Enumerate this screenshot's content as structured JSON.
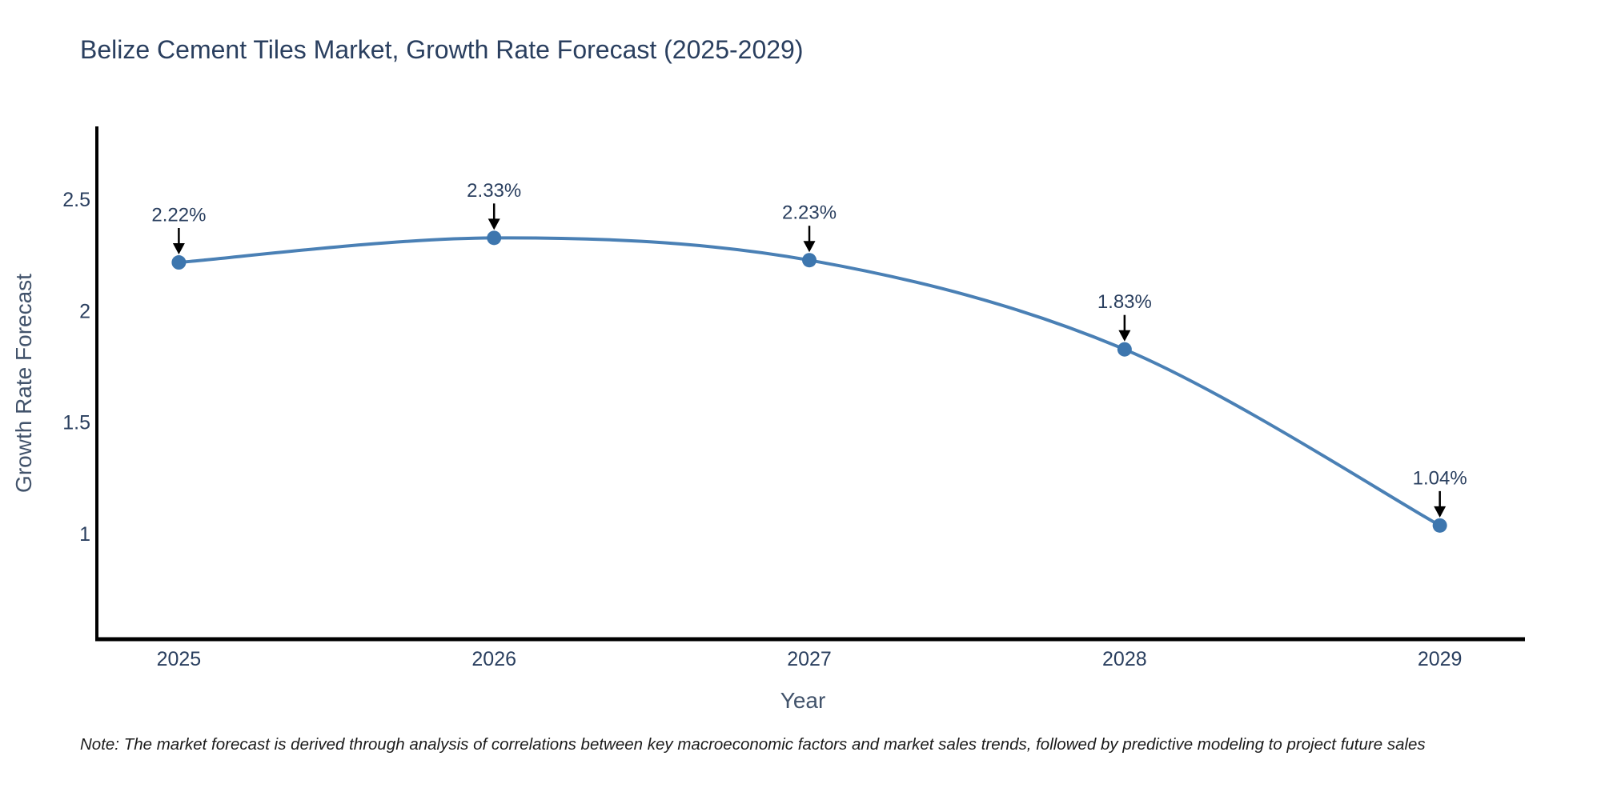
{
  "note": "Note: The market forecast is derived through analysis of correlations between key macroeconomic factors and market sales trends, followed by predictive modeling to project future sales",
  "chart_data": {
    "type": "line",
    "title": "Belize Cement Tiles Market, Growth Rate Forecast (2025-2029)",
    "xlabel": "Year",
    "ylabel": "Growth Rate Forecast",
    "x": [
      2025,
      2026,
      2027,
      2028,
      2029
    ],
    "series": [
      {
        "name": "Growth Rate Forecast",
        "values": [
          2.22,
          2.33,
          2.23,
          1.83,
          1.04
        ]
      }
    ],
    "point_labels": [
      "2.22%",
      "2.33%",
      "2.23%",
      "1.83%",
      "1.04%"
    ],
    "xticks": [
      2025,
      2026,
      2027,
      2028,
      2029
    ],
    "yticks": [
      1,
      1.5,
      2,
      2.5
    ],
    "xlim": [
      2024.74,
      2029.27
    ],
    "ylim": [
      0.53,
      2.83
    ],
    "grid": false,
    "legend": false,
    "line_shape": "spline",
    "colors": {
      "line": "#4a80b5",
      "marker": "#3d76ae",
      "axis": "#000000",
      "tick_text": "#2a3f5f",
      "axis_title_text": "#42536b",
      "annotation_text": "#2a3f5f",
      "arrow": "#000000"
    }
  }
}
